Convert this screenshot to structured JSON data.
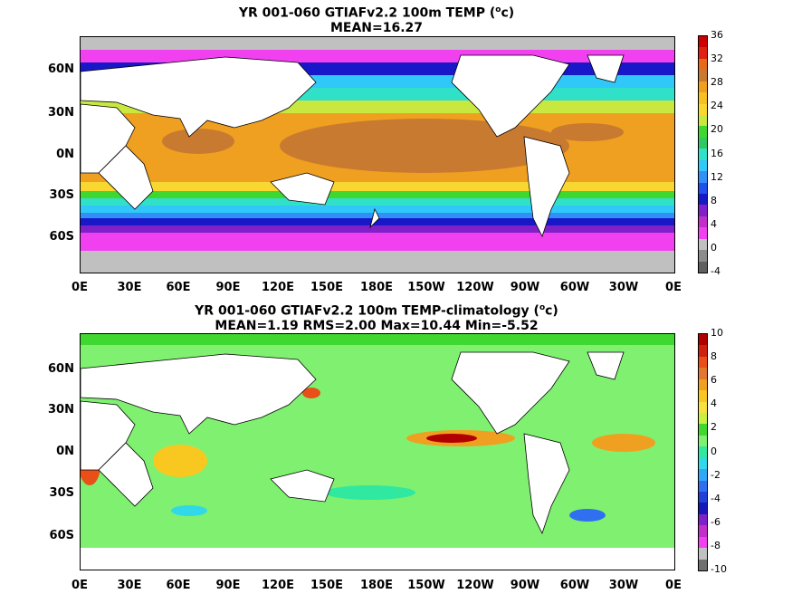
{
  "panels": [
    {
      "title_line1": "YR 001-060 GTIAFv2.2 100m TEMP (",
      "title_unit": "o",
      "title_unit_tail": "c)",
      "title_line2": "MEAN=16.27",
      "colorbar_ticks": [
        "36",
        "32",
        "28",
        "24",
        "20",
        "16",
        "12",
        "8",
        "4",
        "0",
        "-4"
      ],
      "colorbar_colors": [
        "#cc0000",
        "#e02010",
        "#e86a18",
        "#c87a30",
        "#f0a020",
        "#f8c020",
        "#f8d830",
        "#c8e840",
        "#40d830",
        "#30c860",
        "#30e0c8",
        "#30c8f8",
        "#3090f8",
        "#2050f0",
        "#1818c8",
        "#8020c8",
        "#c030c8",
        "#f040f0",
        "#c0c0c0",
        "#8c8c8c",
        "#606060"
      ],
      "lat_labels": [
        "60N",
        "30N",
        "0N",
        "30S",
        "60S"
      ],
      "lon_labels": [
        "0E",
        "30E",
        "60E",
        "90E",
        "120E",
        "150E",
        "180E",
        "150W",
        "120W",
        "90W",
        "60W",
        "30W",
        "0E"
      ]
    },
    {
      "title_line1": "YR 001-060 GTIAFv2.2 100m TEMP-climatology (",
      "title_unit": "o",
      "title_unit_tail": "c)",
      "title_line2": "MEAN=1.19   RMS=2.00   Max=10.44   Min=-5.52",
      "colorbar_ticks": [
        "10",
        "8",
        "6",
        "4",
        "2",
        "0",
        "-2",
        "-4",
        "-6",
        "-8",
        "-10"
      ],
      "colorbar_colors": [
        "#b00000",
        "#d02010",
        "#e85018",
        "#e07830",
        "#f0a020",
        "#f8c820",
        "#f8e040",
        "#c8f040",
        "#40d830",
        "#80f070",
        "#30e8a0",
        "#30d8e8",
        "#30a8f8",
        "#3070f0",
        "#2040d8",
        "#1818b8",
        "#8020c8",
        "#c030c8",
        "#f040f0",
        "#c0c0c0",
        "#707070"
      ],
      "lat_labels": [
        "60N",
        "30N",
        "0N",
        "30S",
        "60S"
      ],
      "lon_labels": [
        "0E",
        "30E",
        "60E",
        "90E",
        "120E",
        "150E",
        "180E",
        "150W",
        "120W",
        "90W",
        "60W",
        "30W",
        "0E"
      ]
    }
  ]
}
